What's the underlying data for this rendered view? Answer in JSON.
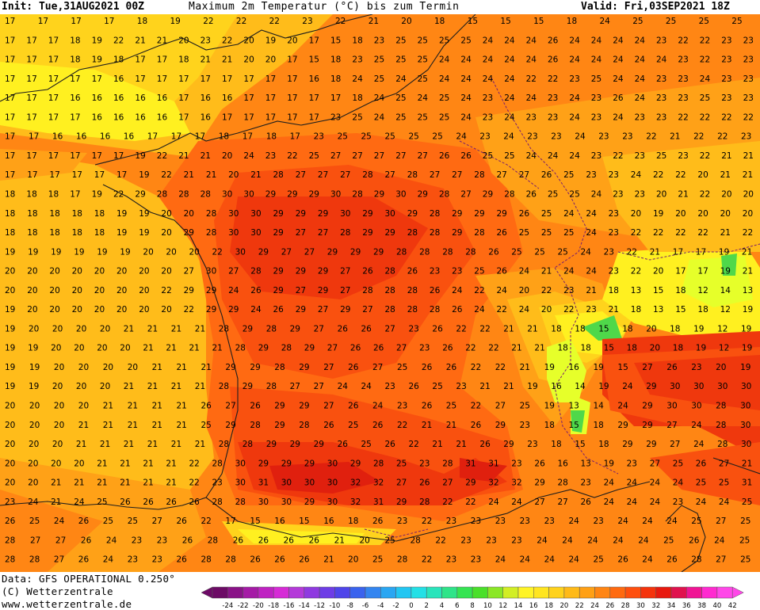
{
  "header": {
    "init": "Init: Tue,31AUG2021 00Z",
    "title": "Maximum 2m Temperatur (°C) bis zum Termin",
    "valid": "Valid: Fri,03SEP2021 18Z"
  },
  "footer": {
    "data_source": "Data: GFS OPERATIONAL 0.250°",
    "copyright": "(C) Wetterzentrale",
    "url": "www.wetterzentrale.de"
  },
  "legend": {
    "labels": [
      "-24",
      "-22",
      "-20",
      "-18",
      "-16",
      "-14",
      "-12",
      "-10",
      "-8",
      "-6",
      "-4",
      "-2",
      "0",
      "2",
      "4",
      "6",
      "8",
      "10",
      "12",
      "14",
      "16",
      "18",
      "20",
      "22",
      "24",
      "26",
      "28",
      "30",
      "32",
      "34",
      "36",
      "38",
      "40",
      "42"
    ],
    "colors": [
      "#6d0b66",
      "#8a1388",
      "#a51ba6",
      "#bf22c2",
      "#d62bd6",
      "#b43ad9",
      "#8f3ae0",
      "#6e3de6",
      "#4f45ea",
      "#3a63ee",
      "#3385f0",
      "#2aa6f2",
      "#22c6f2",
      "#23e0e6",
      "#29e4bb",
      "#2fe489",
      "#35e452",
      "#4ae02a",
      "#8be726",
      "#d2ee25",
      "#fff427",
      "#ffe520",
      "#ffd21c",
      "#ffba18",
      "#ffa015",
      "#ff8513",
      "#ff6a10",
      "#ff4f0e",
      "#f5330c",
      "#e8190f",
      "#e0124e",
      "#f01595",
      "#ff2ad0",
      "#ff47e8"
    ]
  },
  "map": {
    "colors": {
      "t12": "#4fd84a",
      "t14": "#e6ff2a",
      "t16": "#fff020",
      "t18": "#ffd31c",
      "t20": "#ffbc1a",
      "t22": "#ffa117",
      "t24": "#ff8614",
      "t26": "#ff6a12",
      "t28": "#f9510f",
      "t30": "#ef380d",
      "t32": "#e0200e",
      "coast": "#1e1e1e",
      "border": "#7a1f6e"
    },
    "rows": [
      [
        "17 17 17 17 18 19 22 22 22 23 22 21 20 18 15 15 15 18 24 25 25 25 25"
      ],
      [
        "17 17 17 18 19 22 21 21 20 23 22 20 19 20 17 15 18 23 25 25 25 25 24 24 24 26 24 24 24 24 23 22 22 23 23"
      ],
      [
        "17 17 17 18 19 18 17 17 18 21 21 20 20 17 15 18 23 25 25 25 24 24 24 24 24 26 24 24 24 24 24 23 22 23 23"
      ],
      [
        "17 17 17 17 17 16 17 17 17 17 17 17 17 17 16 18 24 25 24 25 24 24 24 24 22 22 23 25 24 24 23 23 24 23 23"
      ],
      [
        "17 17 17 16 16 16 16 16 17 16 16 17 17 17 17 17 18 24 25 24 25 24 23 24 24 23 24 23 26 24 23 23 25 23 23"
      ],
      [
        "17 17 17 17 16 16 16 16 17 16 17 17 17 17 17 23 25 24 25 25 25 24 23 24 23 23 24 23 24 23 23 22 22 22 22"
      ],
      [
        "17 17 16 16 16 16 17 17 17 18 17 18 17 23 25 25 25 25 25 24 23 24 23 23 24 23 23 22 21 22 22 23"
      ],
      [
        "17 17 17 17 17 17 19 22 21 21 20 24 23 22 25 27 27 27 27 27 26 26 25 25 24 24 24 23 22 23 25 23 22 21 21"
      ],
      [
        "17 17 17 17 17 17 19 22 21 21 20 21 28 27 27 27 28 27 28 27 27 28 27 27 26 25 23 23 24 22 22 20 21 21"
      ],
      [
        "18 18 18 17 19 22 29 28 28 28 30 30 29 29 29 30 28 29 30 29 28 27 29 28 26 25 25 24 23 23 20 21 22 20 20"
      ],
      [
        "18 18 18 18 18 19 19 20 20 28 30 30 29 29 29 30 29 30 29 28 29 29 29 26 25 24 24 23 20 19 20 20 20 20"
      ],
      [
        "18 18 18 18 18 19 19 20 29 28 30 30 29 27 27 28 29 29 28 28 29 28 26 25 25 25 24 23 22 22 22 22 21 22"
      ],
      [
        "19 19 19 19 19 19 20 20 20 22 30 29 27 27 29 29 29 28 28 28 28 26 25 25 25 24 23 22 21 17 17 19 21"
      ],
      [
        "20 20 20 20 20 20 20 20 27 30 27 28 29 29 29 27 26 28 26 23 23 25 26 24 21 24 24 23 22 20 17 17 19 21"
      ],
      [
        "20 20 20 20 20 20 20 22 29 29 24 26 29 27 29 27 28 28 28 26 24 22 24 20 22 23 21 18 13 15 18 12 14 13"
      ],
      [
        "19 20 20 20 20 20 20 20 22 29 29 24 26 29 27 29 27 28 28 28 26 24 22 24 20 22 23 21 18 13 15 18 12 19"
      ],
      [
        "19 20 20 20 20 21 21 21 21 28 29 28 29 27 26 26 27 23 26 22 22 21 21 18 18 15 18 20 18 19 12 19"
      ],
      [
        "19 19 20 20 20 20 21 21 21 21 28 29 28 29 27 26 26 27 23 26 22 22 21 21 18 18 15 18 20 18 19 12 19"
      ],
      [
        "19 19 20 20 20 20 21 21 21 29 29 28 29 27 26 27 25 26 26 22 22 21 19 16 19 15 27 26 23 20 19"
      ],
      [
        "19 19 20 20 20 21 21 21 21 28 29 28 27 27 24 24 23 26 25 23 21 21 19 16 14 19 24 29 30 30 30 30"
      ],
      [
        "20 20 20 20 21 21 21 21 26 27 26 29 29 27 26 24 23 26 25 22 27 25 19 13 14 24 29 30 30 28 30"
      ],
      [
        "20 20 20 21 21 21 21 21 25 29 28 29 28 26 25 26 22 21 21 26 29 23 18 15 18 29 29 27 24 28 30"
      ],
      [
        "20 20 20 21 21 21 21 21 21 28 28 29 29 29 26 25 26 22 21 21 26 29 23 18 15 18 29 29 27 24 28 30"
      ],
      [
        "20 20 20 20 21 21 21 21 22 28 30 29 29 29 30 29 28 25 23 28 31 31 23 26 16 13 19 23 27 25 26 27 21"
      ],
      [
        "20 20 21 21 21 21 21 21 22 23 30 31 30 30 30 32 32 27 26 27 29 32 32 29 28 23 24 24 24 24 25 25 31"
      ],
      [
        "23 24 21 24 25 26 26 26 26 28 28 30 30 29 30 32 31 29 28 22 22 24 24 27 27 26 24 24 24 23 24 24 25"
      ],
      [
        "26 25 24 26 25 25 27 26 22 17 15 16 15 16 18 26 23 22 23 23 23 23 23 24 23 24 24 24 25 27 25"
      ],
      [
        "28 27 27 26 24 23 23 26 28 26 26 26 26 21 20 25 28 22 23 23 23 24 24 24 24 24 25 26 24 25"
      ],
      [
        "28 28 27 26 24 23 23 26 28 28 26 26 26 21 20 25 28 22 23 23 24 24 24 24 25 26 24 26 28 27 25"
      ]
    ]
  }
}
